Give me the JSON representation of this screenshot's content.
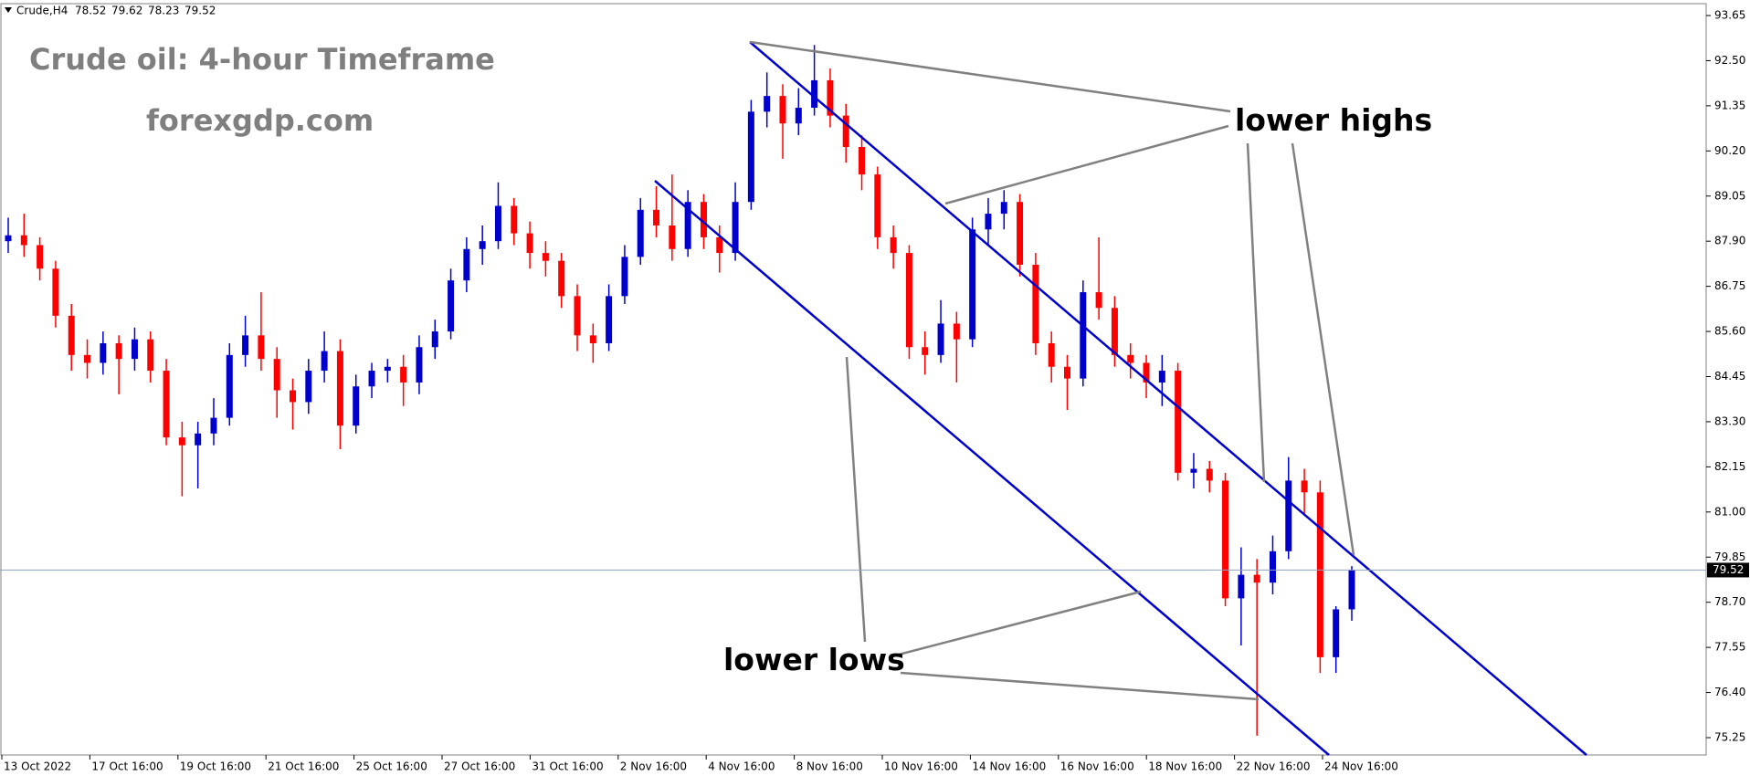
{
  "chart_data": {
    "type": "candlestick",
    "header": {
      "symbol": "Crude,H4",
      "values": [
        78.52,
        79.62,
        78.23,
        79.52
      ]
    },
    "title": "Crude oil: 4-hour Timeframe",
    "subtitle": "forexgdp.com",
    "annotations": [
      "lower highs",
      "lower lows"
    ],
    "up_color": "#0000cd",
    "down_color": "#ff0000",
    "current_price": 79.52,
    "ylim": [
      75.25,
      93.65
    ],
    "yticks": [
      93.65,
      {
        "value": 92.5,
        "label": "92.50"
      },
      91.35,
      {
        "value": 90.2,
        "label": "90.20"
      },
      89.05,
      {
        "value": 87.9,
        "label": "87.90"
      },
      86.75,
      {
        "value": 85.6,
        "label": "85.60"
      },
      84.45,
      {
        "value": 83.3,
        "label": "83.30"
      },
      82.15,
      {
        "value": 81,
        "label": "81.00"
      },
      79.85,
      {
        "value": 78.7,
        "label": "78.70"
      },
      77.55,
      {
        "value": 76.4,
        "label": "76.40"
      },
      75.25
    ],
    "x_labels": [
      "13 Oct 2022",
      "17 Oct 16:00",
      "19 Oct 16:00",
      "21 Oct 16:00",
      "25 Oct 16:00",
      "27 Oct 16:00",
      "31 Oct 16:00",
      "2 Nov 16:00",
      "4 Nov 16:00",
      "8 Nov 16:00",
      "10 Nov 16:00",
      "14 Nov 16:00",
      "16 Nov 16:00",
      "18 Nov 16:00",
      "22 Nov 16:00",
      "24 Nov 16:00"
    ],
    "candles": [
      [
        87.9,
        88.5,
        87.6,
        88.05
      ],
      [
        88.05,
        88.6,
        87.5,
        87.8
      ],
      [
        87.8,
        88.0,
        86.9,
        87.2
      ],
      [
        87.2,
        87.4,
        85.7,
        86.0
      ],
      [
        86.0,
        86.3,
        84.6,
        85.0
      ],
      [
        85.0,
        85.4,
        84.4,
        84.8
      ],
      [
        84.8,
        85.6,
        84.5,
        85.3
      ],
      [
        85.3,
        85.5,
        84.0,
        84.9
      ],
      [
        84.9,
        85.7,
        84.6,
        85.4
      ],
      [
        85.4,
        85.6,
        84.3,
        84.6
      ],
      [
        84.6,
        84.9,
        82.7,
        82.9
      ],
      [
        82.9,
        83.3,
        81.4,
        82.7
      ],
      [
        82.7,
        83.3,
        81.6,
        83.0
      ],
      [
        83.0,
        83.9,
        82.7,
        83.4
      ],
      [
        83.4,
        85.3,
        83.2,
        85.0
      ],
      [
        85.0,
        86.0,
        84.7,
        85.5
      ],
      [
        85.5,
        86.6,
        84.6,
        84.9
      ],
      [
        84.9,
        85.2,
        83.4,
        84.1
      ],
      [
        84.1,
        84.4,
        83.1,
        83.8
      ],
      [
        83.8,
        84.9,
        83.5,
        84.6
      ],
      [
        84.6,
        85.6,
        84.3,
        85.1
      ],
      [
        85.1,
        85.4,
        82.6,
        83.2
      ],
      [
        83.2,
        84.5,
        83.0,
        84.2
      ],
      [
        84.2,
        84.8,
        83.9,
        84.6
      ],
      [
        84.6,
        84.9,
        84.3,
        84.7
      ],
      [
        84.7,
        85.0,
        83.7,
        84.3
      ],
      [
        84.3,
        85.5,
        84.0,
        85.2
      ],
      [
        85.2,
        85.9,
        84.9,
        85.6
      ],
      [
        85.6,
        87.2,
        85.4,
        86.9
      ],
      [
        86.9,
        88.0,
        86.6,
        87.7
      ],
      [
        87.7,
        88.3,
        87.3,
        87.9
      ],
      [
        87.9,
        89.4,
        87.7,
        88.8
      ],
      [
        88.8,
        89.0,
        87.8,
        88.1
      ],
      [
        88.1,
        88.4,
        87.2,
        87.6
      ],
      [
        87.6,
        87.9,
        87.0,
        87.4
      ],
      [
        87.4,
        87.6,
        86.2,
        86.5
      ],
      [
        86.5,
        86.8,
        85.1,
        85.5
      ],
      [
        85.5,
        85.8,
        84.8,
        85.3
      ],
      [
        85.3,
        86.8,
        85.1,
        86.5
      ],
      [
        86.5,
        87.8,
        86.3,
        87.5
      ],
      [
        87.5,
        89.0,
        87.3,
        88.7
      ],
      [
        88.7,
        89.3,
        88.0,
        88.3
      ],
      [
        88.3,
        89.6,
        87.4,
        87.7
      ],
      [
        87.7,
        89.2,
        87.5,
        88.9
      ],
      [
        88.9,
        89.1,
        87.7,
        88.0
      ],
      [
        88.0,
        88.3,
        87.1,
        87.6
      ],
      [
        87.6,
        89.4,
        87.4,
        88.9
      ],
      [
        88.9,
        91.5,
        88.7,
        91.2
      ],
      [
        91.2,
        92.2,
        90.8,
        91.6
      ],
      [
        91.6,
        91.9,
        90.0,
        90.9
      ],
      [
        90.9,
        91.8,
        90.6,
        91.3
      ],
      [
        91.3,
        92.9,
        91.1,
        92.0
      ],
      [
        92.0,
        92.3,
        90.8,
        91.1
      ],
      [
        91.1,
        91.4,
        89.9,
        90.3
      ],
      [
        90.3,
        90.6,
        89.2,
        89.6
      ],
      [
        89.6,
        89.8,
        87.7,
        88.0
      ],
      [
        88.0,
        88.3,
        87.2,
        87.6
      ],
      [
        87.6,
        87.8,
        84.9,
        85.2
      ],
      [
        85.2,
        85.6,
        84.5,
        85.0
      ],
      [
        85.0,
        86.4,
        84.8,
        85.8
      ],
      [
        85.8,
        86.1,
        84.3,
        85.4
      ],
      [
        85.4,
        88.5,
        85.2,
        88.2
      ],
      [
        88.2,
        89.0,
        87.8,
        88.6
      ],
      [
        88.6,
        89.2,
        88.2,
        88.9
      ],
      [
        88.9,
        89.1,
        87.0,
        87.3
      ],
      [
        87.3,
        87.6,
        85.0,
        85.3
      ],
      [
        85.3,
        85.6,
        84.3,
        84.7
      ],
      [
        84.7,
        85.0,
        83.6,
        84.4
      ],
      [
        84.4,
        86.9,
        84.2,
        86.6
      ],
      [
        86.6,
        88.0,
        85.9,
        86.2
      ],
      [
        86.2,
        86.5,
        84.7,
        85.0
      ],
      [
        85.0,
        85.3,
        84.4,
        84.8
      ],
      [
        84.8,
        85.0,
        83.9,
        84.3
      ],
      [
        84.3,
        85.0,
        83.7,
        84.6
      ],
      [
        84.6,
        84.8,
        81.8,
        82.0
      ],
      [
        82.0,
        82.5,
        81.6,
        82.1
      ],
      [
        82.1,
        82.3,
        81.5,
        81.8
      ],
      [
        81.8,
        82.0,
        78.6,
        78.8
      ],
      [
        78.8,
        80.1,
        77.6,
        79.4
      ],
      [
        79.4,
        79.8,
        75.3,
        79.2
      ],
      [
        79.2,
        80.4,
        78.9,
        80.0
      ],
      [
        80.0,
        82.4,
        79.8,
        81.8
      ],
      [
        81.8,
        82.1,
        80.9,
        81.5
      ],
      [
        81.5,
        81.8,
        76.9,
        77.3
      ],
      [
        77.3,
        78.6,
        76.9,
        78.52
      ],
      [
        78.52,
        79.62,
        78.23,
        79.52
      ]
    ]
  }
}
